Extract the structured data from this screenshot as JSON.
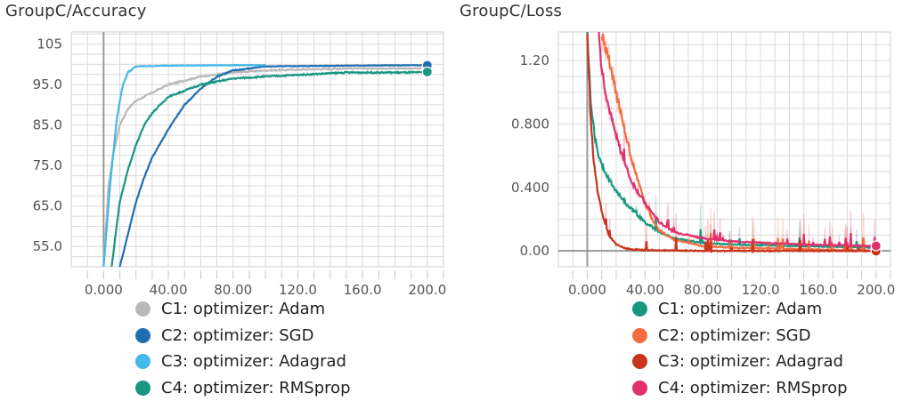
{
  "chart_data": [
    {
      "type": "line",
      "title": "GroupC/Accuracy",
      "xlim": [
        -20,
        210
      ],
      "ylim": [
        50,
        108
      ],
      "xticks": [
        0,
        40,
        80,
        120,
        160,
        200
      ],
      "xtick_labels": [
        "0.000",
        "40.00",
        "80.00",
        "120.0",
        "160.0",
        "200.0"
      ],
      "yticks": [
        55,
        65,
        75,
        85,
        95,
        105
      ],
      "ytick_labels": [
        "55.0",
        "65.0",
        "75.0",
        "85.0",
        "95.0",
        "105"
      ],
      "grid": true,
      "legend_position": "bottom",
      "series": [
        {
          "name": "C1: optimizer: Adam",
          "color": "#b9b9b9",
          "x": [
            0,
            3,
            6,
            10,
            15,
            20,
            30,
            40,
            60,
            80,
            100,
            150,
            200
          ],
          "y": [
            50,
            70,
            78,
            85,
            89,
            91,
            93,
            95,
            97,
            98,
            98.5,
            99,
            99
          ]
        },
        {
          "name": "C2: optimizer: SGD",
          "color": "#1f6fb0",
          "x": [
            10,
            15,
            20,
            25,
            30,
            40,
            50,
            60,
            70,
            80,
            90,
            100,
            150,
            200
          ],
          "y": [
            50,
            58,
            66,
            72,
            77,
            84,
            90,
            94,
            97,
            98.5,
            99,
            99.5,
            99.7,
            99.8
          ]
        },
        {
          "name": "C3: optimizer: Adagrad",
          "color": "#43b8ea",
          "x": [
            0,
            2,
            4,
            6,
            8,
            10,
            12,
            15,
            20,
            40,
            80,
            100
          ],
          "y": [
            50,
            60,
            70,
            78,
            86,
            91,
            95,
            98,
            99.5,
            99.7,
            99.8,
            99.8
          ]
        },
        {
          "name": "C4: optimizer: RMSprop",
          "color": "#17977f",
          "x": [
            5,
            8,
            10,
            15,
            20,
            25,
            30,
            40,
            60,
            80,
            100,
            150,
            200
          ],
          "y": [
            50,
            60,
            66,
            74,
            80,
            85,
            88,
            92,
            95,
            96.5,
            97,
            98,
            98
          ]
        }
      ]
    },
    {
      "type": "line",
      "title": "GroupC/Loss",
      "xlim": [
        -20,
        210
      ],
      "ylim": [
        -0.1,
        1.38
      ],
      "xticks": [
        0,
        40,
        80,
        120,
        160,
        200
      ],
      "xtick_labels": [
        "0.000",
        "40.00",
        "80.00",
        "120.0",
        "160.0",
        "200.0"
      ],
      "yticks": [
        0,
        0.4,
        0.8,
        1.2
      ],
      "ytick_labels": [
        "0.00",
        "0.400",
        "0.800",
        "1.20"
      ],
      "grid": true,
      "legend_position": "bottom",
      "series": [
        {
          "name": "C1: optimizer: Adam",
          "color": "#17977f",
          "x": [
            0,
            2,
            4,
            6,
            8,
            10,
            15,
            20,
            25,
            30,
            40,
            50,
            60,
            80,
            100,
            150,
            200
          ],
          "y": [
            1.38,
            1.0,
            0.8,
            0.68,
            0.6,
            0.55,
            0.45,
            0.38,
            0.32,
            0.27,
            0.18,
            0.12,
            0.08,
            0.05,
            0.04,
            0.03,
            0.02
          ]
        },
        {
          "name": "C2: optimizer: SGD",
          "color": "#f36d3f",
          "x": [
            10,
            15,
            20,
            25,
            30,
            35,
            40,
            45,
            50,
            60,
            80,
            100,
            150,
            200
          ],
          "y": [
            1.38,
            1.2,
            1.0,
            0.8,
            0.6,
            0.45,
            0.3,
            0.2,
            0.13,
            0.07,
            0.03,
            0.02,
            0.01,
            0.0
          ]
        },
        {
          "name": "C3: optimizer: Adagrad",
          "color": "#c8341c",
          "x": [
            0,
            2,
            4,
            6,
            8,
            10,
            12,
            15,
            20,
            25,
            30,
            40,
            80,
            200
          ],
          "y": [
            1.38,
            0.9,
            0.62,
            0.45,
            0.34,
            0.25,
            0.18,
            0.1,
            0.04,
            0.02,
            0.01,
            0.005,
            0.0,
            0.0
          ]
        },
        {
          "name": "C4: optimizer: RMSprop",
          "color": "#e0316e",
          "x": [
            8,
            10,
            15,
            20,
            25,
            30,
            40,
            50,
            60,
            80,
            100,
            150,
            200
          ],
          "y": [
            1.38,
            1.15,
            0.9,
            0.72,
            0.58,
            0.45,
            0.3,
            0.18,
            0.12,
            0.08,
            0.06,
            0.04,
            0.03
          ]
        }
      ]
    }
  ]
}
